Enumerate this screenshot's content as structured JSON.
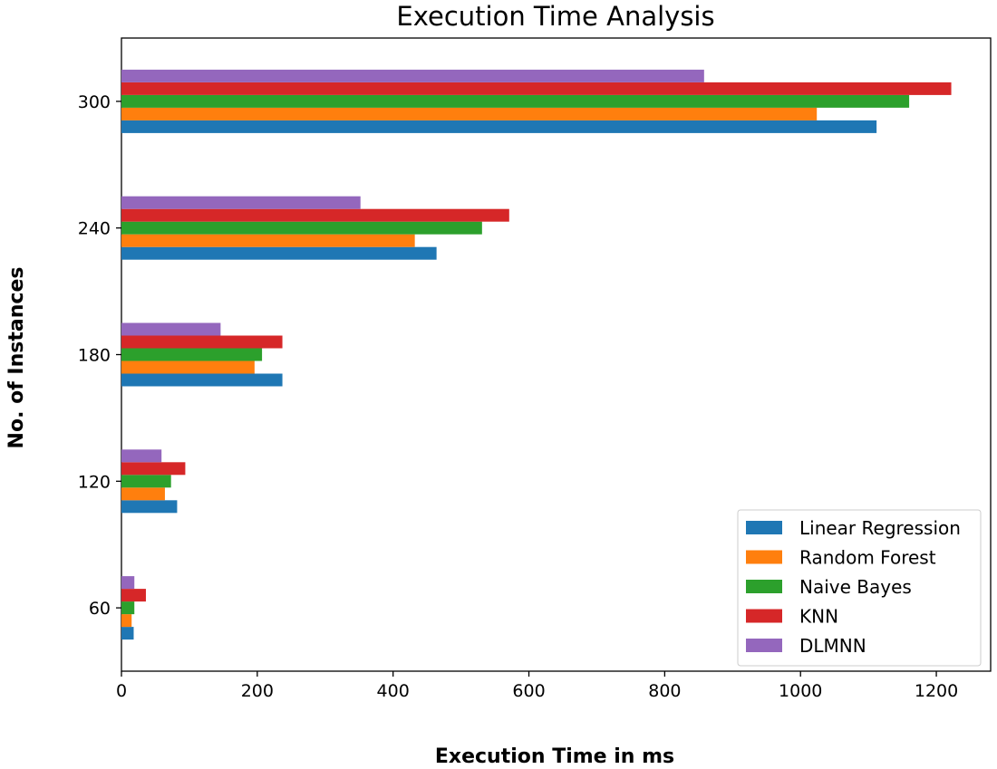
{
  "chart_data": {
    "type": "bar",
    "orientation": "horizontal",
    "title": "Execution Time Analysis",
    "xlabel": "Execution Time in ms",
    "ylabel": "No. of Instances",
    "categories": [
      "60",
      "120",
      "180",
      "240",
      "300"
    ],
    "xlim": [
      0,
      1280
    ],
    "xticks": [
      0,
      200,
      400,
      600,
      800,
      1000,
      1200
    ],
    "grid": false,
    "legend_position": "lower-right",
    "series": [
      {
        "name": "Linear Regression",
        "color": "#1f77b4",
        "values": [
          18,
          82,
          237,
          464,
          1112
        ]
      },
      {
        "name": "Random Forest",
        "color": "#ff7f0e",
        "values": [
          15,
          64,
          196,
          432,
          1024
        ]
      },
      {
        "name": "Naive Bayes",
        "color": "#2ca02c",
        "values": [
          19,
          73,
          207,
          531,
          1160
        ]
      },
      {
        "name": "KNN",
        "color": "#d62728",
        "values": [
          36,
          94,
          237,
          571,
          1222
        ]
      },
      {
        "name": "DLMNN",
        "color": "#9467bd",
        "values": [
          19,
          59,
          146,
          352,
          858
        ]
      }
    ]
  }
}
